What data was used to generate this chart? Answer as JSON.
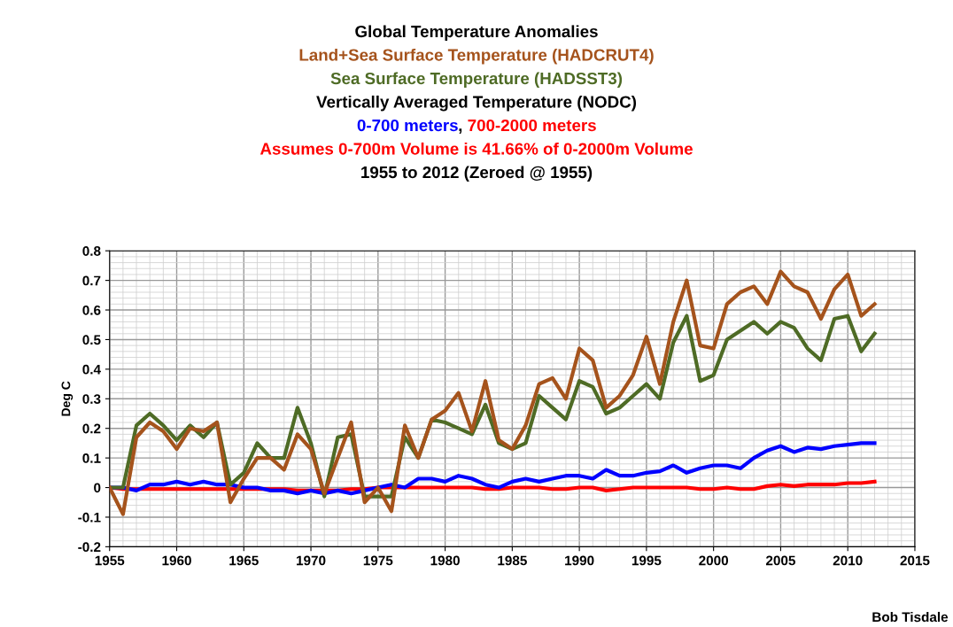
{
  "chart_data": {
    "type": "line",
    "title": "Global Temperature Anomalies",
    "subtitle": "1955 to 2012 (Zeroed @ 1955)",
    "ylabel": "Deg C",
    "annotations": [
      "Vertically Averaged Temperature (NODC)",
      ",",
      "Assumes 0-700m Volume is 41.66% of 0-2000m Volume",
      "Bob Tisdale"
    ],
    "x": [
      1955,
      1956,
      1957,
      1958,
      1959,
      1960,
      1961,
      1962,
      1963,
      1964,
      1965,
      1966,
      1967,
      1968,
      1969,
      1970,
      1971,
      1972,
      1973,
      1974,
      1975,
      1976,
      1977,
      1978,
      1979,
      1980,
      1981,
      1982,
      1983,
      1984,
      1985,
      1986,
      1987,
      1988,
      1989,
      1990,
      1991,
      1992,
      1993,
      1994,
      1995,
      1996,
      1997,
      1998,
      1999,
      2000,
      2001,
      2002,
      2003,
      2004,
      2005,
      2006,
      2007,
      2008,
      2009,
      2010,
      2011,
      2012
    ],
    "series": [
      {
        "name": "Land+Sea Surface Temperature (HADCRUT4)",
        "color": "#a5531c",
        "values": [
          0,
          -0.09,
          0.17,
          0.22,
          0.19,
          0.13,
          0.2,
          0.19,
          0.22,
          -0.05,
          0.03,
          0.1,
          0.1,
          0.06,
          0.18,
          0.13,
          -0.02,
          0.1,
          0.22,
          -0.05,
          0,
          -0.08,
          0.21,
          0.1,
          0.23,
          0.26,
          0.32,
          0.19,
          0.36,
          0.16,
          0.13,
          0.21,
          0.35,
          0.37,
          0.3,
          0.47,
          0.43,
          0.27,
          0.31,
          0.38,
          0.51,
          0.35,
          0.56,
          0.7,
          0.48,
          0.47,
          0.62,
          0.66,
          0.68,
          0.62,
          0.73,
          0.68,
          0.66,
          0.57,
          0.67,
          0.72,
          0.58,
          0.62
        ]
      },
      {
        "name": "Sea Surface Temperature (HADSST3)",
        "color": "#4e6b25",
        "values": [
          0,
          0,
          0.21,
          0.25,
          0.21,
          0.16,
          0.21,
          0.17,
          0.22,
          0.01,
          0.05,
          0.15,
          0.1,
          0.1,
          0.27,
          0.15,
          -0.03,
          0.17,
          0.18,
          -0.03,
          -0.03,
          -0.03,
          0.17,
          0.1,
          0.23,
          0.22,
          0.2,
          0.18,
          0.28,
          0.15,
          0.13,
          0.15,
          0.31,
          0.27,
          0.23,
          0.36,
          0.34,
          0.25,
          0.27,
          0.31,
          0.35,
          0.3,
          0.49,
          0.58,
          0.36,
          0.38,
          0.5,
          0.53,
          0.56,
          0.52,
          0.56,
          0.54,
          0.47,
          0.43,
          0.57,
          0.58,
          0.46,
          0.52
        ]
      },
      {
        "name": "0-700 meters",
        "color": "#0000ff",
        "values": [
          0,
          0,
          -0.01,
          0.01,
          0.01,
          0.02,
          0.01,
          0.02,
          0.01,
          0.01,
          0,
          0,
          -0.01,
          -0.01,
          -0.02,
          -0.01,
          -0.02,
          -0.01,
          -0.02,
          -0.01,
          0,
          0.01,
          0,
          0.03,
          0.03,
          0.02,
          0.04,
          0.03,
          0.01,
          0,
          0.02,
          0.03,
          0.02,
          0.03,
          0.04,
          0.04,
          0.03,
          0.06,
          0.04,
          0.04,
          0.05,
          0.055,
          0.075,
          0.05,
          0.065,
          0.075,
          0.075,
          0.065,
          0.1,
          0.125,
          0.14,
          0.12,
          0.135,
          0.13,
          0.14,
          0.145,
          0.15,
          0.15
        ]
      },
      {
        "name": "700-2000 meters",
        "color": "#ff0000",
        "values": [
          0,
          -0.005,
          -0.005,
          -0.005,
          -0.005,
          -0.005,
          -0.005,
          -0.005,
          -0.005,
          -0.005,
          -0.005,
          -0.005,
          -0.005,
          -0.005,
          -0.01,
          -0.01,
          -0.01,
          -0.01,
          -0.005,
          -0.005,
          0,
          0,
          0,
          0,
          0,
          0,
          0,
          0,
          -0.005,
          -0.005,
          0,
          0,
          0,
          -0.005,
          -0.005,
          0,
          0,
          -0.01,
          -0.005,
          0,
          0,
          0,
          0,
          0,
          -0.005,
          -0.005,
          0,
          -0.005,
          -0.005,
          0.005,
          0.01,
          0.005,
          0.01,
          0.01,
          0.01,
          0.015,
          0.015,
          0.02
        ]
      }
    ],
    "xlim": [
      1955,
      2015
    ],
    "xticks": [
      1955,
      1960,
      1965,
      1970,
      1975,
      1980,
      1985,
      1990,
      1995,
      2000,
      2005,
      2010,
      2015
    ],
    "ylim": [
      -0.2,
      0.8
    ],
    "yticks": [
      -0.2,
      -0.1,
      0,
      0.1,
      0.2,
      0.3,
      0.4,
      0.5,
      0.6,
      0.7,
      0.8
    ],
    "grid": true,
    "marker": "none",
    "line_style": "solid"
  }
}
